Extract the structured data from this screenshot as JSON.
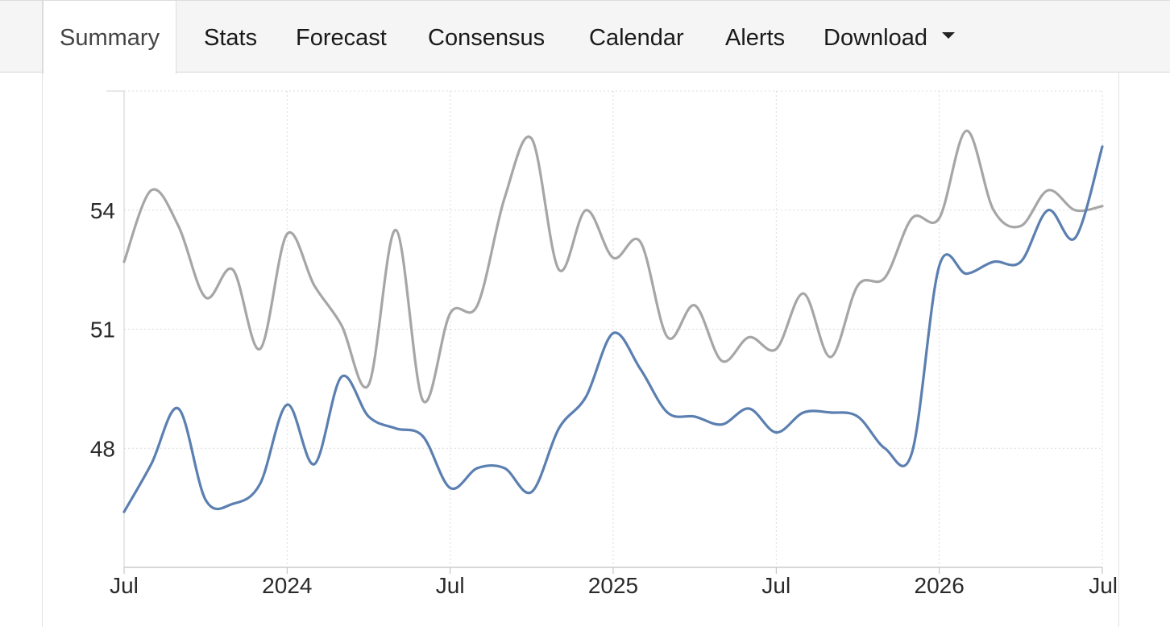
{
  "tabs": [
    {
      "label": "Summary",
      "active": true
    },
    {
      "label": "Stats",
      "active": false
    },
    {
      "label": "Forecast",
      "active": false
    },
    {
      "label": "Consensus",
      "active": false
    },
    {
      "label": "Calendar",
      "active": false
    },
    {
      "label": "Alerts",
      "active": false
    },
    {
      "label": "Download",
      "active": false,
      "dropdown": true
    }
  ],
  "icons": {
    "download_caret": "caret-down-icon"
  },
  "colors": {
    "series_primary": "#5b7fb0",
    "series_secondary": "#a6a6a6",
    "gridline": "#dcdcdc",
    "tabbar_background": "#f5f5f5"
  },
  "chart_data": {
    "type": "line",
    "title": "",
    "xlabel": "",
    "ylabel": "",
    "x_ticks": [
      "Jul",
      "2024",
      "Jul",
      "2025",
      "Jul",
      "2026",
      "Jul"
    ],
    "y_ticks": [
      48,
      51,
      54
    ],
    "ylim": [
      45,
      57
    ],
    "x_range": [
      "2023-07",
      "2026-07"
    ],
    "grid": true,
    "legend": "none",
    "x": [
      "2023-07",
      "2023-08",
      "2023-09",
      "2023-10",
      "2023-11",
      "2023-12",
      "2024-01",
      "2024-02",
      "2024-03",
      "2024-04",
      "2024-05",
      "2024-06",
      "2024-07",
      "2024-08",
      "2024-09",
      "2024-10",
      "2024-11",
      "2024-12",
      "2025-01",
      "2025-02",
      "2025-03",
      "2025-04",
      "2025-05",
      "2025-06",
      "2025-07",
      "2025-08",
      "2025-09",
      "2025-10",
      "2025-11",
      "2025-12",
      "2026-01",
      "2026-02",
      "2026-03",
      "2026-04",
      "2026-05",
      "2026-06",
      "2026-07"
    ],
    "series": [
      {
        "color": "#5b7fb0",
        "values": [
          46.4,
          47.6,
          49.0,
          46.7,
          46.6,
          47.1,
          49.1,
          47.6,
          49.8,
          48.8,
          48.5,
          48.3,
          47.0,
          47.5,
          47.5,
          46.9,
          48.5,
          49.3,
          50.9,
          50.0,
          48.9,
          48.8,
          48.6,
          49.0,
          48.4,
          48.9,
          48.9,
          48.8,
          48.0,
          47.9,
          52.6,
          52.4,
          52.7,
          52.7,
          54.0,
          53.3,
          55.6
        ]
      },
      {
        "color": "#a6a6a6",
        "values": [
          52.7,
          54.5,
          53.6,
          51.8,
          52.5,
          50.5,
          53.4,
          52.1,
          51.1,
          49.6,
          53.5,
          49.2,
          51.4,
          51.6,
          54.3,
          55.8,
          52.5,
          54.0,
          52.8,
          53.2,
          50.8,
          51.6,
          50.2,
          50.8,
          50.5,
          51.9,
          50.3,
          52.1,
          52.3,
          53.8,
          53.8,
          56.0,
          54.0,
          53.6,
          54.5,
          54.0,
          54.1
        ]
      }
    ]
  }
}
